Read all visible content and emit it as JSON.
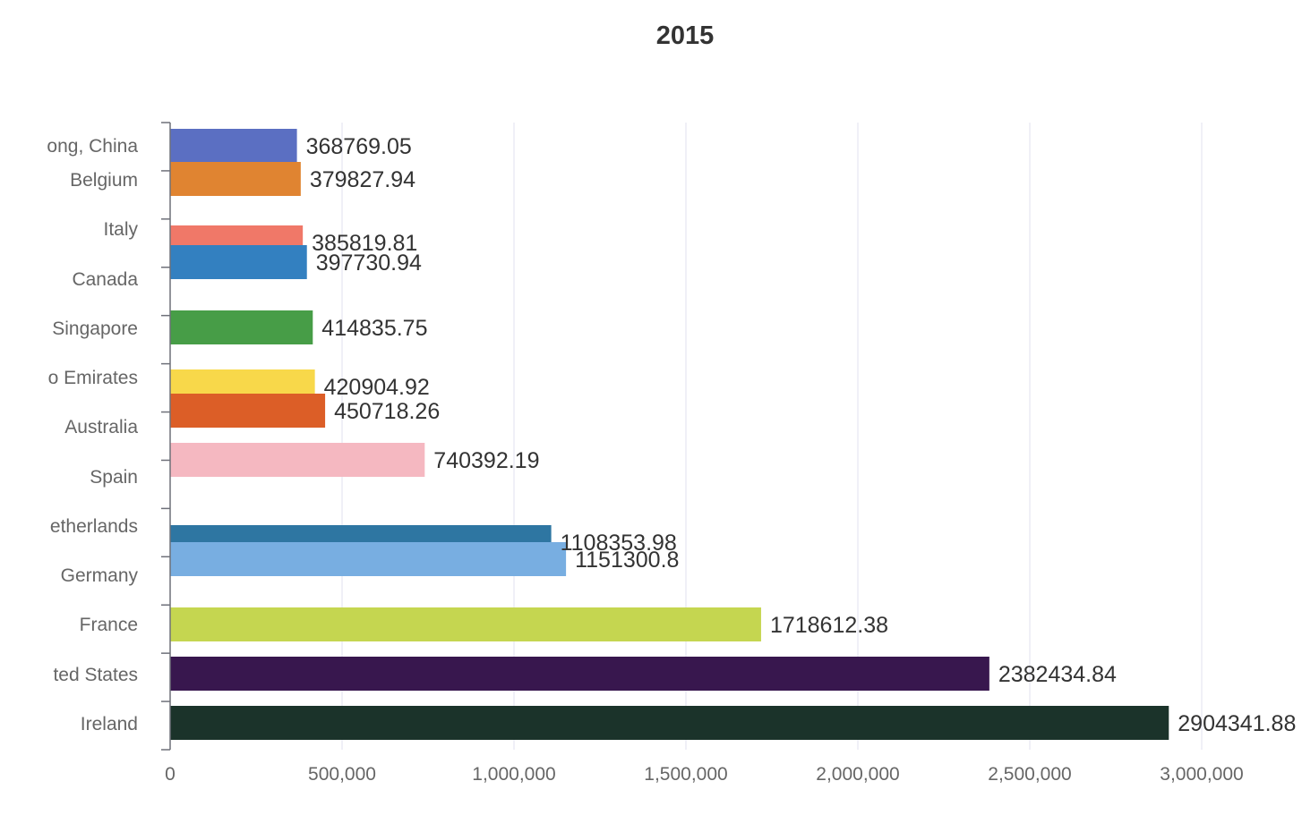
{
  "chart_data": {
    "type": "bar",
    "orientation": "horizontal",
    "title": "2015",
    "xlabel": "",
    "ylabel": "",
    "xlim": [
      0,
      3150000
    ],
    "x_ticks": [
      0,
      500000,
      1000000,
      1500000,
      2000000,
      2500000,
      3000000
    ],
    "x_tick_labels": [
      "0",
      "500,000",
      "1,000,000",
      "1,500,000",
      "2,000,000",
      "2,500,000",
      "3,000,000"
    ],
    "grid": "vertical",
    "categories": [
      "ong, China",
      "Belgium",
      "Italy",
      "Canada",
      "Singapore",
      "o Emirates",
      "Australia",
      "Spain",
      "etherlands",
      "Germany",
      "France",
      "ted States",
      "Ireland"
    ],
    "bars": [
      {
        "category": "ong, China",
        "value": 368769.05,
        "label": "368769.05",
        "color": "#5b6fc2"
      },
      {
        "category": "Belgium",
        "value": 379827.94,
        "label": "379827.94",
        "color": "#e08431"
      },
      {
        "category": "Italy",
        "value": 385819.81,
        "label": "385819.81",
        "color": "#f07868"
      },
      {
        "category": "Canada",
        "value": 397730.94,
        "label": "397730.94",
        "color": "#3380c0"
      },
      {
        "category": "Singapore",
        "value": 414835.75,
        "label": "414835.75",
        "color": "#479d47"
      },
      {
        "category": "o Emirates",
        "value": 420904.92,
        "label": "420904.92",
        "color": "#f8d84a"
      },
      {
        "category": "Australia",
        "value": 450718.26,
        "label": "450718.26",
        "color": "#dc5e27"
      },
      {
        "category": "Spain",
        "value": 740392.19,
        "label": "740392.19",
        "color": "#f5b8c1"
      },
      {
        "category": "etherlands",
        "value": 1108353.98,
        "label": "1108353.98",
        "color": "#2e76a2"
      },
      {
        "category": "Germany",
        "value": 1151300.8,
        "label": "1151300.8",
        "color": "#78aee1"
      },
      {
        "category": "France",
        "value": 1718612.38,
        "label": "1718612.38",
        "color": "#c5d650"
      },
      {
        "category": "ted States",
        "value": 2382434.84,
        "label": "2382434.84",
        "color": "#38174e"
      },
      {
        "category": "Ireland",
        "value": 2904341.88,
        "label": "2904341.88",
        "color": "#1b332a"
      }
    ]
  }
}
